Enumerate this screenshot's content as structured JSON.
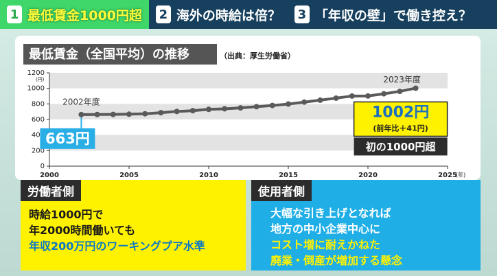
{
  "tabs": [
    {
      "number": "1",
      "label": "最低賃金1000円超"
    },
    {
      "number": "2",
      "label": "海外の時給は倍？"
    },
    {
      "number": "3",
      "label": "「年収の壁」で働き控え？"
    }
  ],
  "chart_data": {
    "type": "line",
    "title": "最低賃金（全国平均）の推移",
    "source": "（出典：厚生労働省）",
    "x_unit": "(年)",
    "y_unit": "(円)",
    "x": [
      2002,
      2003,
      2004,
      2005,
      2006,
      2007,
      2008,
      2009,
      2010,
      2011,
      2012,
      2013,
      2014,
      2015,
      2016,
      2017,
      2018,
      2019,
      2020,
      2021,
      2022,
      2023
    ],
    "series": [
      {
        "color": "#5a5a5a",
        "values": [
          663,
          664,
          665,
          668,
          673,
          687,
          703,
          713,
          730,
          737,
          749,
          764,
          780,
          798,
          823,
          848,
          874,
          901,
          902,
          930,
          961,
          1002
        ]
      }
    ],
    "xlim": [
      2000,
      2025
    ],
    "xticks": [
      2000,
      2005,
      2010,
      2015,
      2020,
      2025
    ],
    "ylim": [
      0,
      1200
    ],
    "yticks": [
      0,
      200,
      400,
      600,
      800,
      1000,
      1200
    ],
    "callouts": [
      {
        "year": "2002年度",
        "label": "663円"
      },
      {
        "year": "2023年度",
        "label": "1002円",
        "sub": "(前年比＋41円)",
        "note": "初の1000円超"
      }
    ]
  },
  "panels": [
    {
      "heading": "労働者側",
      "lines": [
        "時給1000円で",
        "年2000時間働いても",
        "年収200万円のワーキングプア水準"
      ]
    },
    {
      "heading": "使用者側",
      "lines": [
        "大幅な引き上げとなれば",
        "地方の中小企業中心に",
        "コスト増に耐えかねた",
        "廃業・倒産が増加する懸念"
      ]
    }
  ]
}
